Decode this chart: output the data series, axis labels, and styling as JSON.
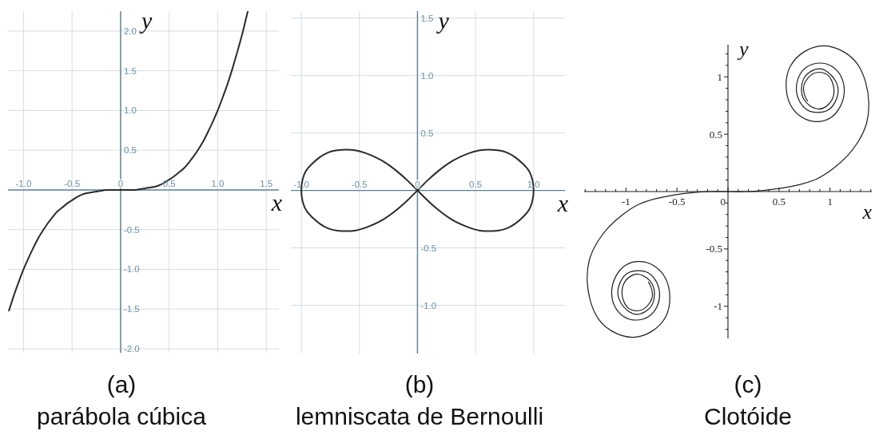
{
  "chart_data": [
    {
      "type": "line",
      "title": "(a)",
      "subtitle": "parábola cúbica",
      "xlabel": "x",
      "ylabel": "y",
      "xlim": [
        -1.16,
        1.63
      ],
      "ylim": [
        -2.05,
        2.25
      ],
      "xticks": [
        {
          "value": -1,
          "label": "-1.0"
        },
        -0.5,
        0,
        0.5,
        {
          "value": 1,
          "label": "1.0"
        },
        1.5
      ],
      "yticks": [
        {
          "value": 2,
          "label": "2.0"
        },
        1.5,
        {
          "value": 1,
          "label": "1.0"
        },
        0.5,
        -0.5,
        {
          "value": -1,
          "label": "-1.0"
        },
        -1.5,
        {
          "value": -2,
          "label": "-2.0"
        }
      ],
      "grid": true,
      "series": [
        {
          "color": "#2b2b2b",
          "x": [
            -1.15,
            -1.1,
            -1.05,
            -1,
            -0.95,
            -0.9,
            -0.85,
            -0.8,
            -0.75,
            -0.7,
            -0.65,
            -0.6,
            -0.55,
            -0.5,
            -0.45,
            -0.4,
            -0.35,
            -0.3,
            -0.25,
            -0.2,
            -0.15,
            -0.1,
            -0.05,
            0,
            0.05,
            0.1,
            0.15,
            0.2,
            0.25,
            0.3,
            0.35,
            0.4,
            0.45,
            0.5,
            0.55,
            0.6,
            0.65,
            0.7,
            0.75,
            0.8,
            0.85,
            0.9,
            0.95,
            1,
            1.05,
            1.1,
            1.15,
            1.2,
            1.25,
            1.3,
            1.31
          ],
          "values": [
            -1.52,
            -1.33,
            -1.16,
            -1,
            -0.86,
            -0.73,
            -0.61,
            -0.51,
            -0.42,
            -0.34,
            -0.27,
            -0.22,
            -0.17,
            -0.13,
            -0.09,
            -0.06,
            -0.04,
            -0.03,
            -0.02,
            -0.01,
            0,
            0,
            0,
            0,
            0,
            0,
            0,
            0.01,
            0.02,
            0.03,
            0.04,
            0.06,
            0.09,
            0.13,
            0.17,
            0.22,
            0.27,
            0.34,
            0.42,
            0.51,
            0.61,
            0.73,
            0.86,
            1,
            1.16,
            1.33,
            1.52,
            1.73,
            1.95,
            2.2,
            2.25
          ]
        }
      ]
    },
    {
      "type": "line",
      "title": "(b)",
      "subtitle": "lemniscata de Bernoulli",
      "xlabel": "x",
      "ylabel": "y",
      "xlim": [
        -1.09,
        1.27
      ],
      "ylim": [
        -1.42,
        1.56
      ],
      "xticks": [
        {
          "value": -1,
          "label": "-1.0"
        },
        -0.5,
        0,
        0.5,
        {
          "value": 1,
          "label": "1.0"
        }
      ],
      "yticks": [
        1.5,
        {
          "value": 1,
          "label": "1.0"
        },
        0.5,
        -0.5,
        {
          "value": -1,
          "label": "-1.0"
        }
      ],
      "grid": true,
      "series": [
        {
          "color": "#2b2b2b",
          "x": [
            -0.09,
            0,
            0.09,
            0.18,
            0.29,
            0.41,
            0.54,
            0.69,
            0.77,
            0.84,
            0.91,
            0.96,
            0.99,
            1,
            0.99,
            0.96,
            0.91,
            0.84,
            0.77,
            0.69,
            0.54,
            0.41,
            0.29,
            0.18,
            0.09,
            0,
            -0.09,
            -0.18,
            -0.29,
            -0.41,
            -0.54,
            -0.69,
            -0.77,
            -0.84,
            -0.91,
            -0.96,
            -0.99,
            -1,
            -0.99,
            -0.96,
            -0.91,
            -0.84,
            -0.77,
            -0.69,
            -0.54,
            -0.41,
            -0.29,
            -0.18,
            -0.09,
            0
          ],
          "values": [
            0.09,
            0,
            -0.09,
            -0.17,
            -0.25,
            -0.31,
            -0.35,
            -0.35,
            -0.33,
            -0.29,
            -0.23,
            -0.17,
            -0.09,
            0,
            0.09,
            0.17,
            0.23,
            0.29,
            0.33,
            0.35,
            0.35,
            0.31,
            0.25,
            0.17,
            0.09,
            0,
            -0.09,
            -0.17,
            -0.25,
            -0.31,
            -0.35,
            -0.35,
            -0.33,
            -0.29,
            -0.23,
            -0.17,
            -0.09,
            0,
            0.09,
            0.17,
            0.23,
            0.29,
            0.33,
            0.35,
            0.35,
            0.31,
            0.25,
            0.17,
            0.09,
            0
          ]
        }
      ]
    },
    {
      "type": "line",
      "title": "(c)",
      "subtitle": "Clotóide",
      "xlabel": "x",
      "ylabel": "y",
      "xlim": [
        -1.41,
        1.41
      ],
      "ylim": [
        -1.28,
        1.28
      ],
      "xticks": [
        {
          "value": -1.4,
          "label": null
        },
        {
          "value": -1.3,
          "label": null
        },
        {
          "value": -1.2,
          "label": null
        },
        {
          "value": -1.1,
          "label": null
        },
        -1,
        {
          "value": -0.9,
          "label": null
        },
        {
          "value": -0.8,
          "label": null
        },
        {
          "value": -0.7,
          "label": null
        },
        {
          "value": -0.6,
          "label": null
        },
        -0.5,
        {
          "value": -0.4,
          "label": null
        },
        {
          "value": -0.3,
          "label": null
        },
        {
          "value": -0.2,
          "label": null
        },
        {
          "value": -0.1,
          "label": null
        },
        0,
        {
          "value": 0.1,
          "label": null
        },
        {
          "value": 0.2,
          "label": null
        },
        {
          "value": 0.3,
          "label": null
        },
        {
          "value": 0.4,
          "label": null
        },
        0.5,
        {
          "value": 0.6,
          "label": null
        },
        {
          "value": 0.7,
          "label": null
        },
        {
          "value": 0.8,
          "label": null
        },
        {
          "value": 0.9,
          "label": null
        },
        1,
        {
          "value": 1.1,
          "label": null
        },
        {
          "value": 1.2,
          "label": null
        },
        {
          "value": 1.3,
          "label": null
        },
        {
          "value": 1.4,
          "label": null
        }
      ],
      "yticks": [
        {
          "value": 1.2,
          "label": null
        },
        {
          "value": 1.1,
          "label": null
        },
        1,
        {
          "value": 0.9,
          "label": null
        },
        {
          "value": 0.8,
          "label": null
        },
        {
          "value": 0.7,
          "label": null
        },
        {
          "value": 0.6,
          "label": null
        },
        0.5,
        {
          "value": 0.4,
          "label": null
        },
        {
          "value": 0.3,
          "label": null
        },
        {
          "value": 0.2,
          "label": null
        },
        {
          "value": 0.1,
          "label": null
        },
        {
          "value": -0.1,
          "label": null
        },
        {
          "value": -0.2,
          "label": null
        },
        {
          "value": -0.3,
          "label": null
        },
        {
          "value": -0.4,
          "label": null
        },
        -0.5,
        {
          "value": -0.6,
          "label": null
        },
        {
          "value": -0.7,
          "label": null
        },
        {
          "value": -0.8,
          "label": null
        },
        {
          "value": -0.9,
          "label": null
        },
        -1,
        {
          "value": -1.1,
          "label": null
        },
        {
          "value": -1.2,
          "label": null
        }
      ],
      "series": [
        {
          "color": "#1e1e1e",
          "x": [
            -0.78,
            -0.76,
            -0.74,
            -0.76,
            -0.82,
            -0.89,
            -0.97,
            -1.02,
            -1.04,
            -1.02,
            -0.96,
            -0.88,
            -0.8,
            -0.74,
            -0.72,
            -0.74,
            -0.8,
            -0.89,
            -0.98,
            -1.05,
            -1.08,
            -1.05,
            -0.98,
            -0.88,
            -0.78,
            -0.7,
            -0.67,
            -0.7,
            -0.78,
            -0.9,
            -1.02,
            -1.11,
            -1.14,
            -1.1,
            -1,
            -0.86,
            -0.72,
            -0.61,
            -0.57,
            -0.61,
            -0.75,
            -0.94,
            -1.13,
            -1.27,
            -1.35,
            -1.38,
            -1.36,
            -1.28,
            -1.17,
            -1.03,
            -0.87,
            -0.7,
            -0.53,
            -0.35,
            -0.18,
            0,
            0.18,
            0.35,
            0.53,
            0.7,
            0.87,
            1.03,
            1.17,
            1.28,
            1.36,
            1.38,
            1.35,
            1.27,
            1.13,
            0.94,
            0.75,
            0.61,
            0.57,
            0.61,
            0.72,
            0.86,
            1,
            1.1,
            1.14,
            1.11,
            1.02,
            0.9,
            0.78,
            0.7,
            0.67,
            0.7,
            0.78,
            0.88,
            0.98,
            1.05,
            1.08,
            1.05,
            0.98,
            0.89,
            0.8,
            0.74,
            0.72,
            0.74,
            0.8,
            0.88,
            0.96,
            1.02,
            1.04,
            1.02,
            0.97,
            0.89,
            0.82,
            0.76,
            0.74,
            0.76,
            0.78
          ],
          "values": [
            -0.79,
            -0.82,
            -0.89,
            -0.96,
            -1.02,
            -1.04,
            -1.02,
            -0.96,
            -0.88,
            -0.8,
            -0.74,
            -0.72,
            -0.75,
            -0.81,
            -0.89,
            -0.98,
            -1.04,
            -1.07,
            -1.04,
            -0.97,
            -0.88,
            -0.78,
            -0.71,
            -0.69,
            -0.71,
            -0.79,
            -0.9,
            -1.01,
            -1.09,
            -1.12,
            -1.09,
            -1,
            -0.87,
            -0.74,
            -0.64,
            -0.61,
            -0.65,
            -0.76,
            -0.92,
            -1.09,
            -1.22,
            -1.27,
            -1.22,
            -1.11,
            -0.95,
            -0.78,
            -0.6,
            -0.44,
            -0.31,
            -0.2,
            -0.11,
            -0.06,
            -0.03,
            -0.01,
            0,
            0,
            0,
            0.01,
            0.03,
            0.06,
            0.11,
            0.2,
            0.31,
            0.44,
            0.6,
            0.78,
            0.95,
            1.11,
            1.22,
            1.27,
            1.22,
            1.09,
            0.92,
            0.76,
            0.65,
            0.61,
            0.64,
            0.74,
            0.87,
            1,
            1.09,
            1.12,
            1.09,
            1.01,
            0.9,
            0.79,
            0.71,
            0.69,
            0.71,
            0.78,
            0.88,
            0.97,
            1.04,
            1.07,
            1.04,
            0.98,
            0.89,
            0.81,
            0.75,
            0.72,
            0.74,
            0.8,
            0.88,
            0.96,
            1.02,
            1.04,
            1.02,
            0.96,
            0.89,
            0.82,
            0.79
          ]
        }
      ]
    }
  ]
}
